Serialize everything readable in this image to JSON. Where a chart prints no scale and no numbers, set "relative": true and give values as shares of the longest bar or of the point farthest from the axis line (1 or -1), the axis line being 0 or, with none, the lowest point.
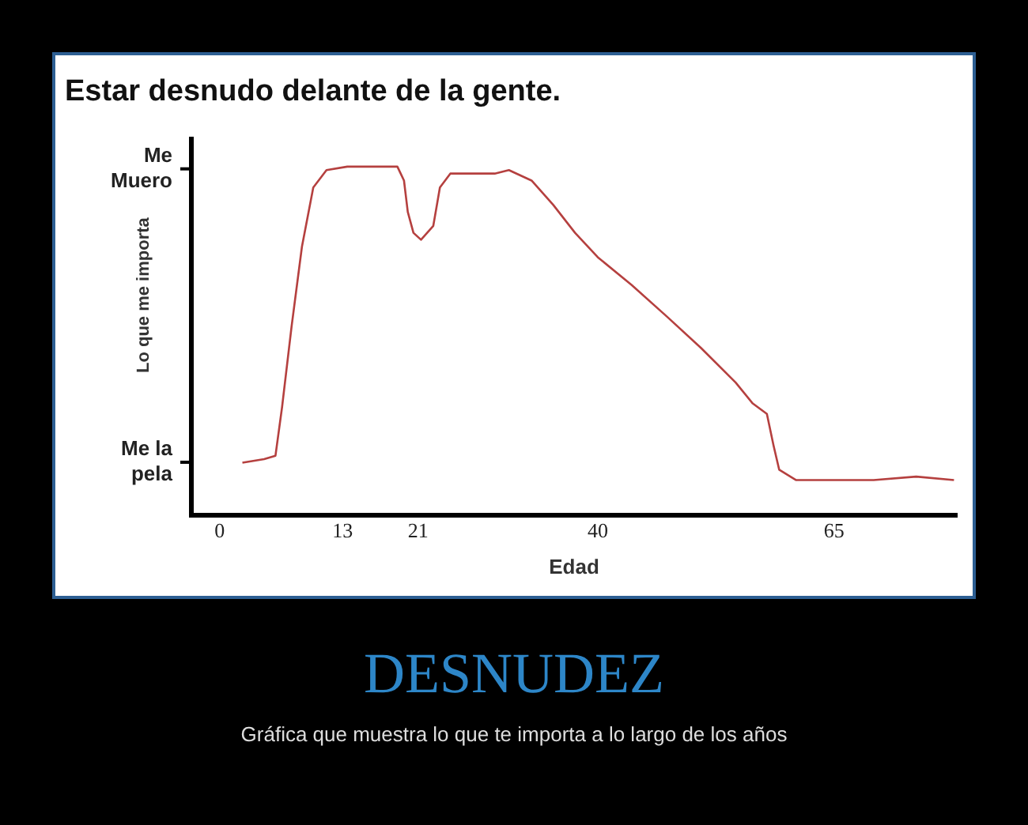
{
  "chart_data": {
    "type": "line",
    "title": "Estar desnudo delante de la gente.",
    "xlabel": "Edad",
    "ylabel": "Lo que me importa",
    "x": [
      2.4,
      4.7,
      5.9,
      6.6,
      7.6,
      8.7,
      9.9,
      11.3,
      13.5,
      16.4,
      18.8,
      19.5,
      19.9,
      20.5,
      21.3,
      22.6,
      23.3,
      24.4,
      26,
      29.1,
      30.6,
      33,
      35.3,
      37.6,
      40,
      43.6,
      47.3,
      50.9,
      54.6,
      56.4,
      57.9,
      58.6,
      59.2,
      61,
      65,
      69.2,
      73.7,
      77.7
    ],
    "series": [
      {
        "color": "#b5403f",
        "values": [
          0.15,
          0.16,
          0.17,
          0.31,
          0.54,
          0.77,
          0.94,
          0.99,
          1,
          1,
          1,
          0.96,
          0.87,
          0.81,
          0.79,
          0.83,
          0.94,
          0.98,
          0.98,
          0.98,
          0.99,
          0.96,
          0.89,
          0.81,
          0.74,
          0.66,
          0.57,
          0.48,
          0.38,
          0.32,
          0.29,
          0.2,
          0.13,
          0.1,
          0.1,
          0.1,
          0.11,
          0.1
        ]
      }
    ],
    "relative": true,
    "xlim": [
      -3,
      78
    ],
    "xticks": [
      0,
      13,
      21,
      40,
      65
    ],
    "grid": false,
    "legend": false,
    "marker": "none",
    "line_style": "solid",
    "annotations": [
      "Me Muero",
      "Me la pela",
      "DESNUDEZ",
      "Gráfica que muestra lo que te importa a lo largo de los años"
    ]
  }
}
